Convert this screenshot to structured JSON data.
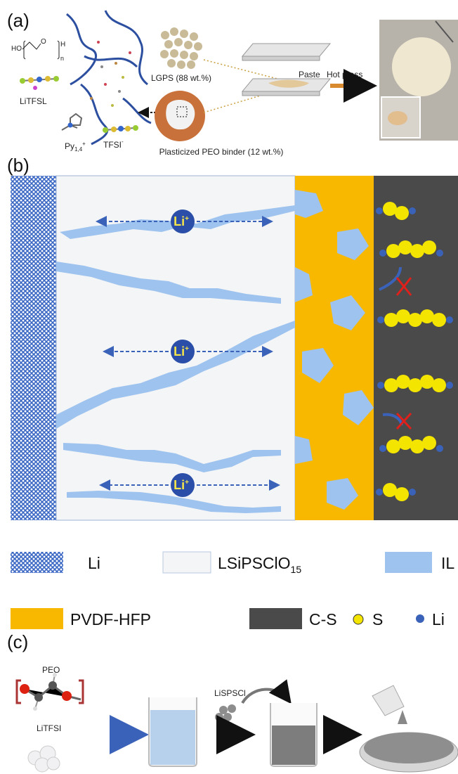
{
  "panel_a": {
    "label": "(a)",
    "formula": {
      "ho": "HO",
      "o": "O",
      "h": "H",
      "n": "n"
    },
    "litfsl": "LiTFSL",
    "py": {
      "base": "Py",
      "sub": "1,4",
      "sup": "+"
    },
    "tfsi": {
      "base": "TFSI",
      "sup": "-"
    },
    "lgps": "LGPS (88 wt.%)",
    "binder": "Plasticized PEO binder (12 wt.%)",
    "paste": "Paste",
    "hot_press": "Hot press"
  },
  "panel_b": {
    "label": "(b)",
    "ions": [
      {
        "base": "Li",
        "sup": "+"
      },
      {
        "base": "Li",
        "sup": "+"
      },
      {
        "base": "Li",
        "sup": "+"
      }
    ]
  },
  "legend": {
    "items": [
      {
        "text": "Li"
      },
      {
        "text": "LSiPSClO",
        "sub": "15"
      },
      {
        "text": "IL"
      },
      {
        "text": "PVDF-HFP"
      },
      {
        "text": "C-S"
      },
      {
        "text": "S"
      },
      {
        "text": "Li"
      }
    ]
  },
  "panel_c": {
    "label": "(c)",
    "peo": "PEO",
    "litfsi": "LiTFSI",
    "lispscl": "LiSPSCl"
  }
}
